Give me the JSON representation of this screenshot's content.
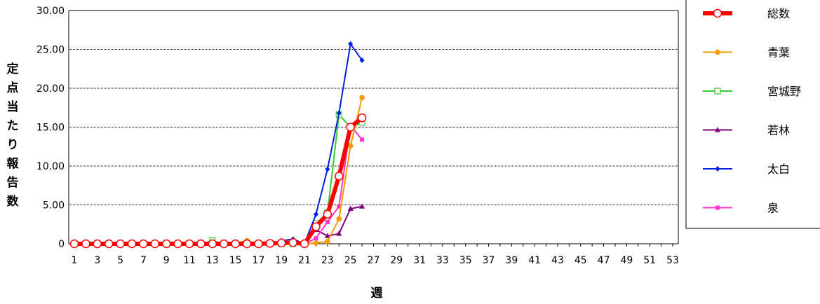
{
  "chart_data": {
    "type": "line",
    "title": "",
    "xlabel": "週",
    "ylabel": "定点当たり報告数",
    "ylim": [
      0,
      30
    ],
    "xlim": [
      1,
      53
    ],
    "y_ticks": [
      "0",
      "5.00",
      "10.00",
      "15.00",
      "20.00",
      "25.00",
      "30.00"
    ],
    "x_ticks": [
      "1",
      "3",
      "5",
      "7",
      "9",
      "11",
      "13",
      "15",
      "17",
      "19",
      "21",
      "23",
      "25",
      "27",
      "29",
      "31",
      "33",
      "35",
      "37",
      "39",
      "41",
      "43",
      "45",
      "47",
      "49",
      "51",
      "53"
    ],
    "grid": "horizontal dotted",
    "legend_position": "right",
    "series": [
      {
        "name": "総数",
        "color": "#ff0000",
        "marker": "circle-open-large",
        "width": 6,
        "x": [
          1,
          2,
          3,
          4,
          5,
          6,
          7,
          8,
          9,
          10,
          11,
          12,
          13,
          14,
          15,
          16,
          17,
          18,
          19,
          20,
          21,
          22,
          23,
          24,
          25,
          26
        ],
        "values": [
          0,
          0,
          0,
          0,
          0,
          0,
          0,
          0,
          0,
          0,
          0,
          0,
          0,
          0,
          0,
          0,
          0,
          0.05,
          0.1,
          0.15,
          0,
          2.2,
          3.8,
          8.7,
          15.0,
          16.2
        ]
      },
      {
        "name": "青葉",
        "color": "#f59a00",
        "marker": "circle-filled",
        "width": 2,
        "x": [
          1,
          2,
          3,
          4,
          5,
          6,
          7,
          8,
          9,
          10,
          11,
          12,
          13,
          14,
          15,
          16,
          17,
          18,
          19,
          20,
          21,
          22,
          23,
          24,
          25,
          26
        ],
        "values": [
          0,
          0,
          0,
          0,
          0,
          0,
          0,
          0,
          0,
          0,
          0,
          0,
          0,
          0.1,
          0.1,
          0.4,
          0,
          0,
          0,
          0,
          0,
          0.1,
          0.3,
          3.2,
          12.6,
          18.8
        ]
      },
      {
        "name": "宮城野",
        "color": "#33cc33",
        "marker": "square-open",
        "width": 2,
        "x": [
          1,
          2,
          3,
          4,
          5,
          6,
          7,
          8,
          9,
          10,
          11,
          12,
          13,
          14,
          15,
          16,
          17,
          18,
          19,
          20,
          21,
          22,
          23,
          24,
          25,
          26
        ],
        "values": [
          0,
          0,
          0,
          0,
          0,
          0,
          0,
          0,
          0,
          0,
          0,
          0,
          0.4,
          0,
          0,
          0,
          0,
          0,
          0,
          0,
          0,
          2.6,
          4.0,
          16.6,
          15.0,
          15.6
        ]
      },
      {
        "name": "若林",
        "color": "#800080",
        "marker": "triangle-filled",
        "width": 2,
        "x": [
          1,
          2,
          3,
          4,
          5,
          6,
          7,
          8,
          9,
          10,
          11,
          12,
          13,
          14,
          15,
          16,
          17,
          18,
          19,
          20,
          21,
          22,
          23,
          24,
          25,
          26
        ],
        "values": [
          0,
          0,
          0,
          0,
          0,
          0,
          0,
          0,
          0,
          0,
          0,
          0,
          0,
          0,
          0,
          0,
          0,
          0,
          0,
          0,
          0,
          1.8,
          1.0,
          1.3,
          4.5,
          4.8
        ]
      },
      {
        "name": "太白",
        "color": "#0022dd",
        "marker": "diamond-filled",
        "width": 2,
        "x": [
          1,
          2,
          3,
          4,
          5,
          6,
          7,
          8,
          9,
          10,
          11,
          12,
          13,
          14,
          15,
          16,
          17,
          18,
          19,
          20,
          21,
          22,
          23,
          24,
          25,
          26
        ],
        "values": [
          0,
          0,
          0,
          0,
          0,
          0,
          0,
          0,
          0,
          0,
          0,
          0,
          0,
          0,
          0,
          0,
          0,
          0,
          0.4,
          0.6,
          0,
          3.8,
          9.6,
          16.8,
          25.7,
          23.6
        ]
      },
      {
        "name": "泉",
        "color": "#ff33cc",
        "marker": "square-filled",
        "width": 2,
        "x": [
          1,
          2,
          3,
          4,
          5,
          6,
          7,
          8,
          9,
          10,
          11,
          12,
          13,
          14,
          15,
          16,
          17,
          18,
          19,
          20,
          21,
          22,
          23,
          24,
          25,
          26
        ],
        "values": [
          0,
          0,
          0,
          0,
          0,
          0,
          0,
          0,
          0,
          0,
          0,
          0,
          0,
          0,
          0,
          0,
          0,
          0,
          0,
          0,
          0,
          0.7,
          2.8,
          4.8,
          15.2,
          13.4
        ]
      }
    ]
  }
}
